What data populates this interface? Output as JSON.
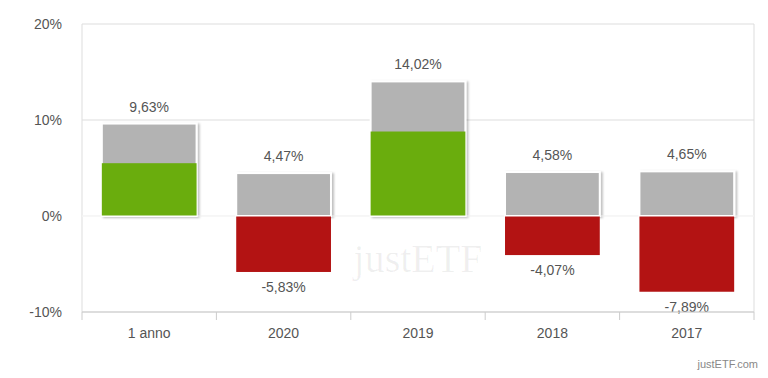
{
  "chart_data": {
    "type": "bar",
    "categories": [
      "1 anno",
      "2020",
      "2019",
      "2018",
      "2017"
    ],
    "series": [
      {
        "color": "#b3b3b3",
        "values": [
          9.63,
          4.47,
          14.02,
          4.58,
          4.65
        ],
        "value_labels": [
          "9,63%",
          "4,47%",
          "14,02%",
          "4,58%",
          "4,65%"
        ]
      },
      {
        "colors": [
          "#6aad0d",
          "#b31313",
          "#6aad0d",
          "#b31313",
          "#b31313"
        ],
        "values": [
          5.5,
          -5.83,
          8.8,
          -4.07,
          -7.89
        ],
        "value_labels": [
          null,
          "-5,83%",
          null,
          "-4,07%",
          "-7,89%"
        ]
      }
    ],
    "ylim": [
      -10,
      20
    ],
    "yticks": [
      {
        "value": -10,
        "label": "-10%"
      },
      {
        "value": 0,
        "label": "0%"
      },
      {
        "value": 10,
        "label": "10%"
      },
      {
        "value": 20,
        "label": "20%"
      }
    ],
    "grid": true,
    "data_labels": true,
    "annotations": [
      "justETF",
      "justETF.com"
    ]
  }
}
